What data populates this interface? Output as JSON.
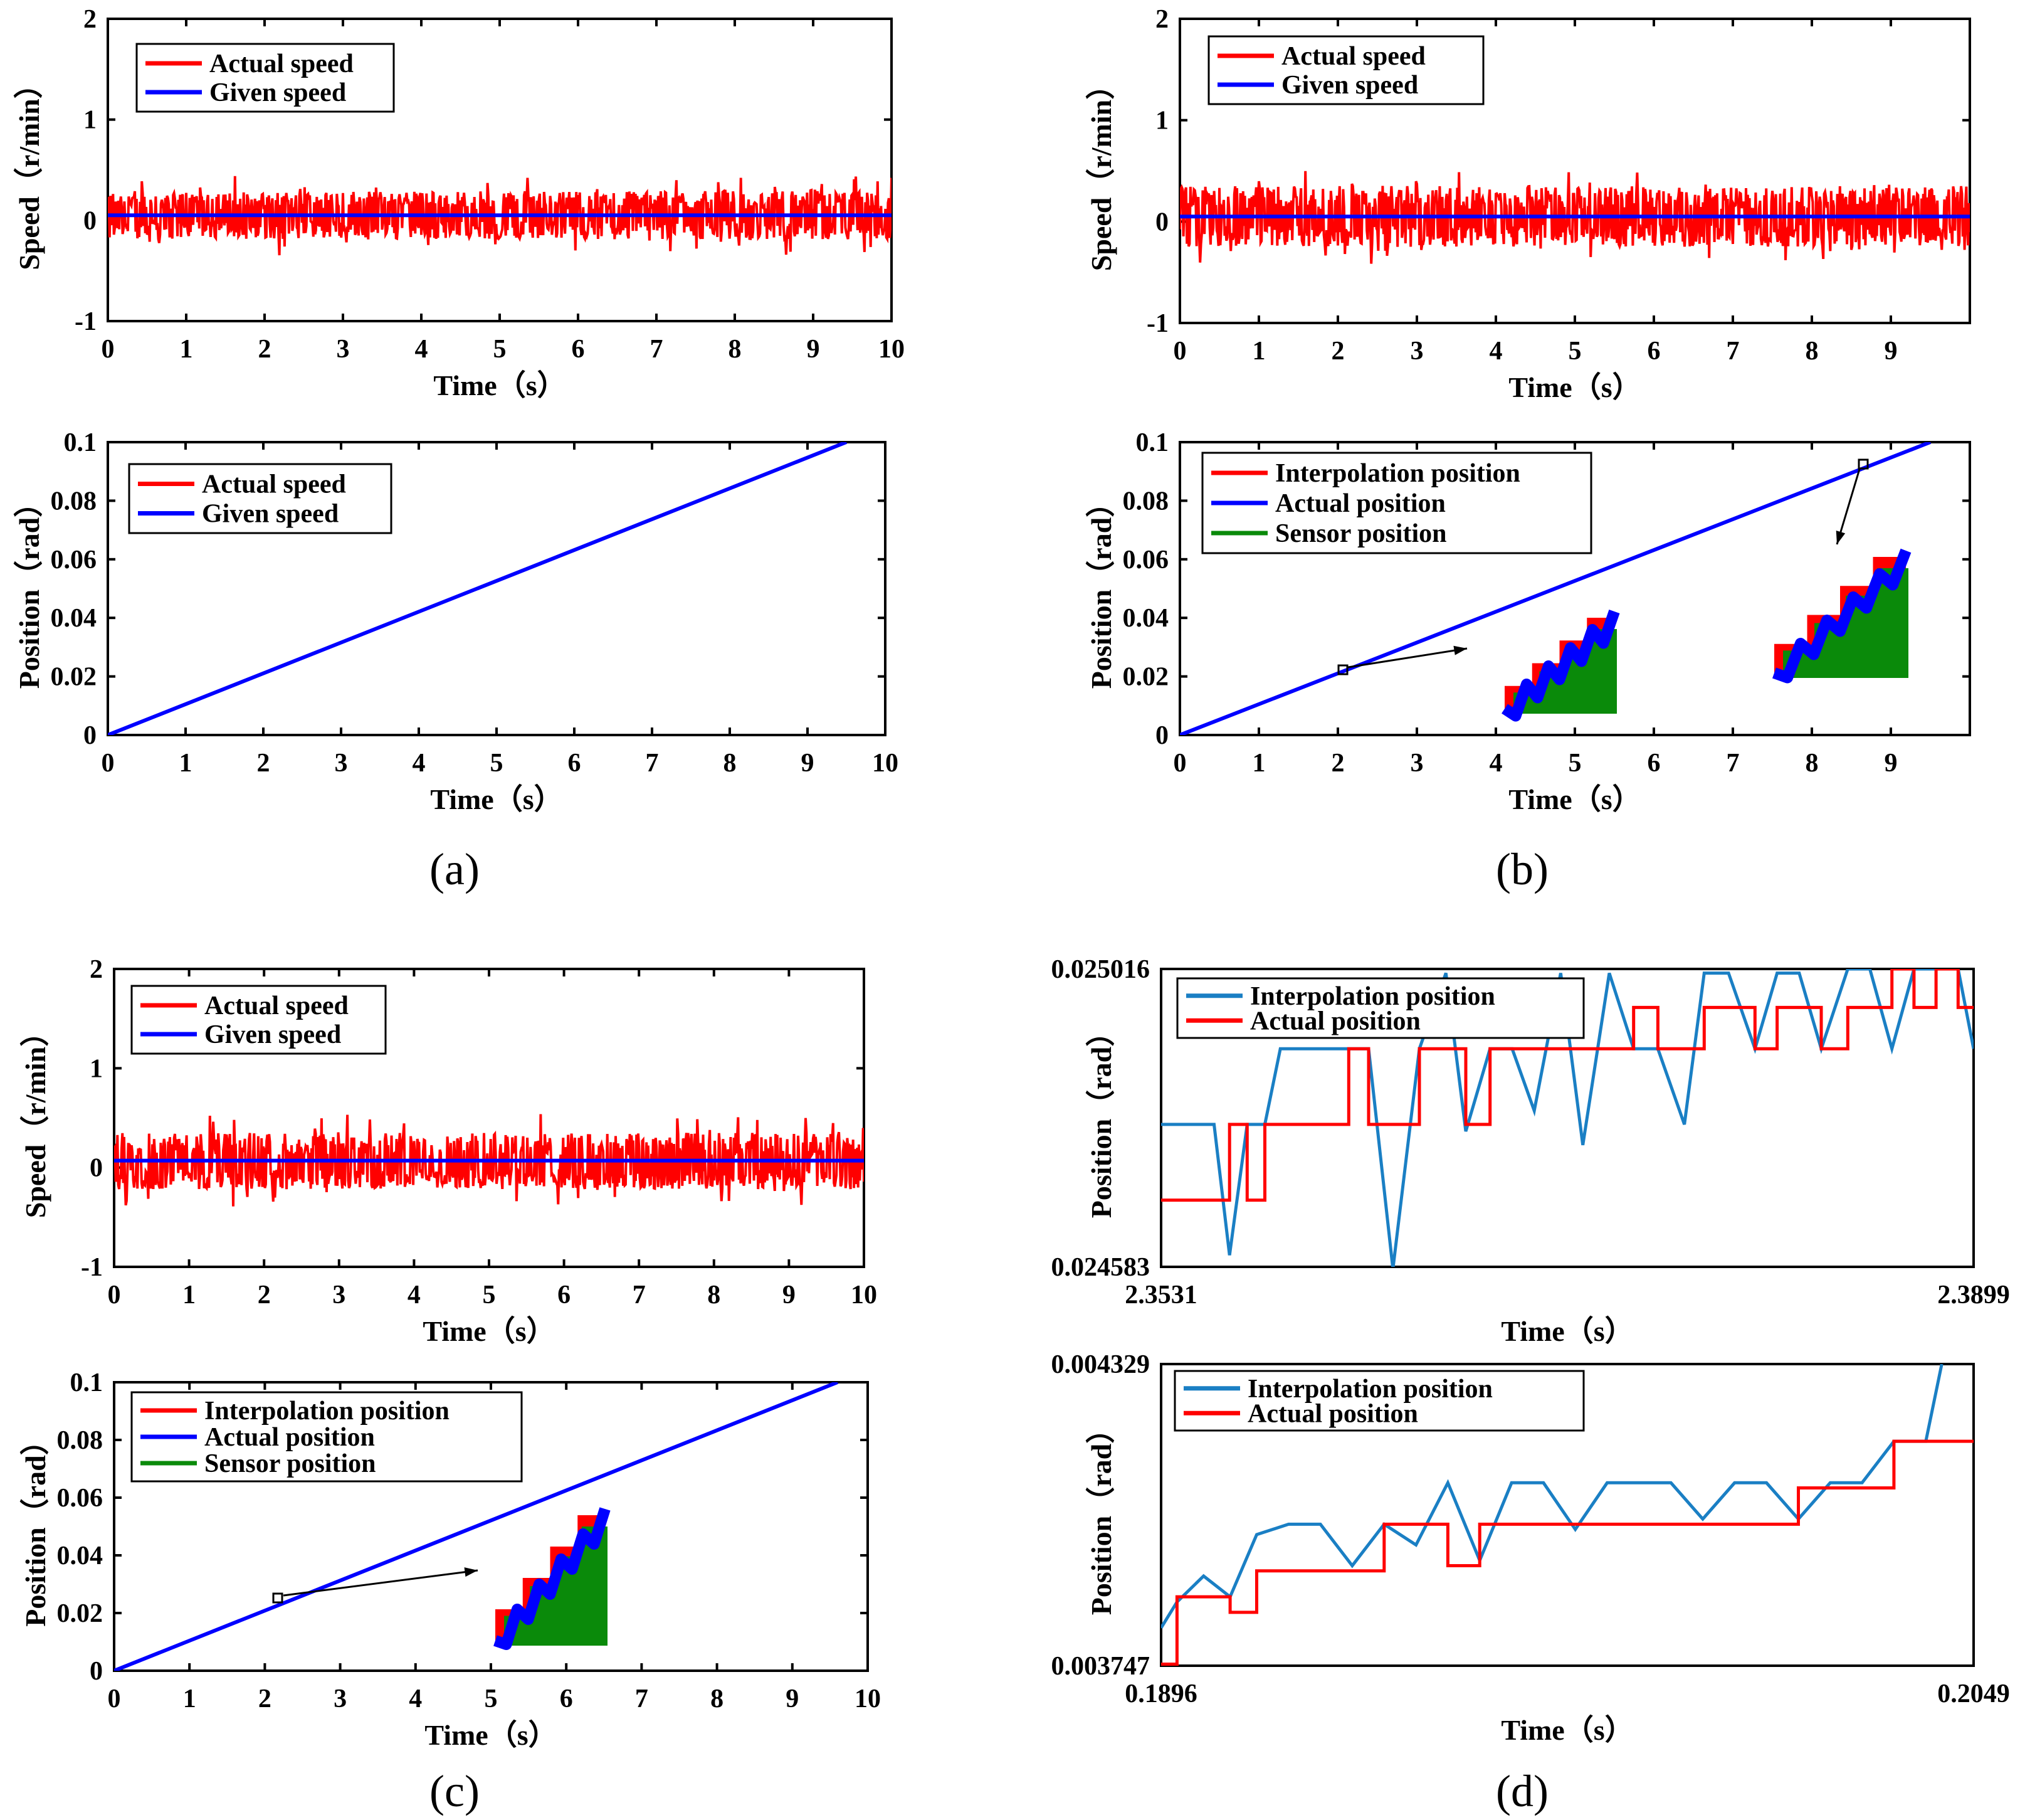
{
  "colors": {
    "actual": "#ff0000",
    "given": "#0000ff",
    "sensor": "#0a8a0a",
    "interp_d": "#1a7fc4",
    "actual_d": "#ff0000"
  },
  "panels": [
    {
      "id": "a",
      "label": "(a)"
    },
    {
      "id": "b",
      "label": "(b)"
    },
    {
      "id": "c",
      "label": "(c)"
    },
    {
      "id": "d",
      "label": "(d)"
    }
  ],
  "chart_data": [
    {
      "id": "a-speed",
      "type": "line",
      "xlabel": "Time（s）",
      "ylabel": "Speed（r/min）",
      "xlim": [
        0,
        10
      ],
      "ylim": [
        -1,
        2
      ],
      "xticks": [
        "0",
        "1",
        "2",
        "3",
        "4",
        "5",
        "6",
        "7",
        "8",
        "9",
        "10"
      ],
      "yticks": [
        "-1",
        "0",
        "1",
        "2"
      ],
      "legend": [
        "Actual speed",
        "Given speed"
      ],
      "legend_position": "top-left",
      "series": [
        {
          "name": "Actual speed",
          "color": "actual",
          "noise": {
            "mean": 0.05,
            "band": [
              -0.35,
              0.45
            ]
          }
        },
        {
          "name": "Given speed",
          "color": "given",
          "x": [
            0,
            10
          ],
          "y": [
            0.05,
            0.05
          ]
        }
      ]
    },
    {
      "id": "a-position",
      "type": "line",
      "xlabel": "Time（s）",
      "ylabel": "Position（rad）",
      "xlim": [
        0,
        10
      ],
      "ylim": [
        0,
        0.1
      ],
      "xticks": [
        "0",
        "1",
        "2",
        "3",
        "4",
        "5",
        "6",
        "7",
        "8",
        "9",
        "10"
      ],
      "yticks": [
        "0",
        "0.02",
        "0.04",
        "0.06",
        "0.08",
        "0.1"
      ],
      "legend": [
        "Actual speed",
        "Given speed"
      ],
      "legend_position": "top-left",
      "series": [
        {
          "name": "Given speed",
          "color": "given",
          "x": [
            0,
            9.5
          ],
          "y": [
            0,
            0.1
          ]
        }
      ]
    },
    {
      "id": "b-speed",
      "type": "line",
      "xlabel": "Time（s）",
      "ylabel": "Speed（r/min）",
      "xlim": [
        0,
        10
      ],
      "ylim": [
        -1,
        2
      ],
      "xticks": [
        "0",
        "1",
        "2",
        "3",
        "4",
        "5",
        "6",
        "7",
        "8",
        "9"
      ],
      "yticks": [
        "-1",
        "0",
        "1",
        "2"
      ],
      "legend": [
        "Actual speed",
        "Given speed"
      ],
      "legend_position": "top-left",
      "series": [
        {
          "name": "Actual speed",
          "color": "actual",
          "noise": {
            "mean": 0.05,
            "band": [
              -0.45,
              0.55
            ]
          }
        },
        {
          "name": "Given speed",
          "color": "given",
          "x": [
            0,
            10
          ],
          "y": [
            0.05,
            0.05
          ]
        }
      ]
    },
    {
      "id": "b-position",
      "type": "line",
      "xlabel": "Time（s）",
      "ylabel": "Position（rad）",
      "xlim": [
        0,
        10
      ],
      "ylim": [
        0,
        0.1
      ],
      "xticks": [
        "0",
        "1",
        "2",
        "3",
        "4",
        "5",
        "6",
        "7",
        "8",
        "9"
      ],
      "yticks": [
        "0",
        "0.02",
        "0.04",
        "0.06",
        "0.08",
        "0.1"
      ],
      "legend": [
        "Interpolation position",
        "Actual position",
        "Sensor position"
      ],
      "legend_position": "top-left",
      "series": [
        {
          "name": "Actual position",
          "color": "given",
          "x": [
            0,
            9.5
          ],
          "y": [
            0,
            0.1
          ]
        }
      ]
    },
    {
      "id": "c-speed",
      "type": "line",
      "xlabel": "Time（s）",
      "ylabel": "Speed（r/min）",
      "xlim": [
        0,
        10
      ],
      "ylim": [
        -1,
        2
      ],
      "xticks": [
        "0",
        "1",
        "2",
        "3",
        "4",
        "5",
        "6",
        "7",
        "8",
        "9",
        "10"
      ],
      "yticks": [
        "-1",
        "0",
        "1",
        "2"
      ],
      "legend": [
        "Actual speed",
        "Given speed"
      ],
      "legend_position": "top-left",
      "series": [
        {
          "name": "Actual speed",
          "color": "actual",
          "noise": {
            "mean": 0.05,
            "band": [
              -0.4,
              0.55
            ]
          }
        },
        {
          "name": "Given speed",
          "color": "given",
          "x": [
            0,
            10
          ],
          "y": [
            0.07,
            0.07
          ]
        }
      ]
    },
    {
      "id": "c-position",
      "type": "line",
      "xlabel": "Time（s）",
      "ylabel": "Position（rad）",
      "xlim": [
        0,
        10
      ],
      "ylim": [
        0,
        0.1
      ],
      "xticks": [
        "0",
        "1",
        "2",
        "3",
        "4",
        "5",
        "6",
        "7",
        "8",
        "9",
        "10"
      ],
      "yticks": [
        "0",
        "0.02",
        "0.04",
        "0.06",
        "0.08",
        "0.1"
      ],
      "legend": [
        "Interpolation position",
        "Actual position",
        "Sensor position"
      ],
      "legend_position": "top-left",
      "series": [
        {
          "name": "Actual position",
          "color": "given",
          "x": [
            0,
            9.6
          ],
          "y": [
            0,
            0.1
          ]
        }
      ]
    },
    {
      "id": "d-top",
      "type": "line",
      "xlabel": "Time（s）",
      "ylabel": "Position（rad）",
      "xlim": [
        2.3531,
        2.3899
      ],
      "ylim": [
        0.024583,
        0.025016
      ],
      "xticks": [
        "2.3531",
        "2.3899"
      ],
      "yticks": [
        "0.024583",
        "0.025016"
      ],
      "legend": [
        "Interpolation position",
        "Actual position"
      ],
      "legend_position": "top-left",
      "series": [
        {
          "name": "Interpolation position",
          "color": "interp_d",
          "x": [
            2.3531,
            2.3541,
            2.3555,
            2.3562,
            2.357,
            2.3578,
            2.3585,
            2.3596,
            2.3608,
            2.3616,
            2.3625,
            2.3636,
            2.3648,
            2.366,
            2.3669,
            2.368,
            2.369,
            2.37,
            2.3712,
            2.3722,
            2.3734,
            2.3745,
            2.3756,
            2.3768,
            2.3777,
            2.3788,
            2.38,
            2.381,
            2.382,
            2.383,
            2.3842,
            2.3852,
            2.3862,
            2.3872,
            2.3882,
            2.3892,
            2.3899
          ],
          "y": [
            0.02479,
            0.02479,
            0.02479,
            0.0246,
            0.02479,
            0.02479,
            0.0249,
            0.0249,
            0.0249,
            0.0249,
            0.0249,
            0.02458,
            0.0249,
            0.02501,
            0.02478,
            0.0249,
            0.0249,
            0.02481,
            0.02501,
            0.02476,
            0.02501,
            0.0249,
            0.0249,
            0.02479,
            0.02501,
            0.02501,
            0.0249,
            0.02501,
            0.02501,
            0.0249,
            0.025016,
            0.025016,
            0.0249,
            0.025016,
            0.025016,
            0.025016,
            0.0249
          ]
        },
        {
          "name": "Actual position",
          "color": "actual_d",
          "x": [
            2.3531,
            2.3541,
            2.3555,
            2.3562,
            2.357,
            2.3578,
            2.3585,
            2.3596,
            2.3608,
            2.3616,
            2.3625,
            2.3636,
            2.3648,
            2.366,
            2.3669,
            2.368,
            2.369,
            2.37,
            2.3712,
            2.3722,
            2.3734,
            2.3745,
            2.3756,
            2.3768,
            2.3777,
            2.3788,
            2.38,
            2.381,
            2.382,
            2.383,
            2.3842,
            2.3852,
            2.3862,
            2.3872,
            2.3882,
            2.3892,
            2.3899
          ],
          "y": [
            0.02468,
            0.02468,
            0.02468,
            0.02479,
            0.02468,
            0.02479,
            0.02479,
            0.02479,
            0.02479,
            0.0249,
            0.02479,
            0.02479,
            0.0249,
            0.0249,
            0.02479,
            0.0249,
            0.0249,
            0.0249,
            0.0249,
            0.0249,
            0.0249,
            0.02496,
            0.0249,
            0.0249,
            0.02496,
            0.02496,
            0.0249,
            0.02496,
            0.02496,
            0.0249,
            0.02496,
            0.02496,
            0.025016,
            0.02496,
            0.025016,
            0.02496,
            0.02496
          ]
        }
      ]
    },
    {
      "id": "d-bottom",
      "type": "line",
      "xlabel": "Time（s）",
      "ylabel": "Position（rad）",
      "xlim": [
        0.1896,
        0.2049
      ],
      "ylim": [
        0.003747,
        0.004329
      ],
      "xticks": [
        "0.1896",
        "0.2049"
      ],
      "yticks": [
        "0.003747",
        "0.004329"
      ],
      "legend": [
        "Interpolation position",
        "Actual position"
      ],
      "legend_position": "top-left",
      "series": [
        {
          "name": "Interpolation position",
          "color": "interp_d",
          "x": [
            0.1896,
            0.1899,
            0.1904,
            0.1909,
            0.1914,
            0.192,
            0.1926,
            0.1932,
            0.1938,
            0.1944,
            0.195,
            0.1956,
            0.1962,
            0.1968,
            0.1974,
            0.198,
            0.1986,
            0.1992,
            0.1998,
            0.2004,
            0.201,
            0.2016,
            0.2022,
            0.2028,
            0.2034,
            0.204,
            0.2043
          ],
          "y": [
            0.00382,
            0.00387,
            0.00392,
            0.00388,
            0.004,
            0.00402,
            0.00402,
            0.00394,
            0.00402,
            0.00398,
            0.0041,
            0.00395,
            0.0041,
            0.0041,
            0.00401,
            0.0041,
            0.0041,
            0.0041,
            0.00403,
            0.0041,
            0.0041,
            0.00403,
            0.0041,
            0.0041,
            0.00418,
            0.00418,
            0.004329
          ]
        },
        {
          "name": "Actual position",
          "color": "actual_d",
          "x": [
            0.1896,
            0.1899,
            0.1904,
            0.1909,
            0.1914,
            0.192,
            0.1926,
            0.1932,
            0.1938,
            0.1944,
            0.195,
            0.1956,
            0.1962,
            0.1968,
            0.1974,
            0.198,
            0.1986,
            0.1992,
            0.1998,
            0.2004,
            0.201,
            0.2016,
            0.2022,
            0.2028,
            0.2034,
            0.204,
            0.2049
          ],
          "y": [
            0.00375,
            0.00388,
            0.00388,
            0.00385,
            0.00393,
            0.00393,
            0.00393,
            0.00393,
            0.00402,
            0.00402,
            0.00394,
            0.00402,
            0.00402,
            0.00402,
            0.00402,
            0.00402,
            0.00402,
            0.00402,
            0.00402,
            0.00402,
            0.00402,
            0.00409,
            0.00409,
            0.00409,
            0.00418,
            0.00418,
            0.00418
          ]
        }
      ]
    }
  ]
}
